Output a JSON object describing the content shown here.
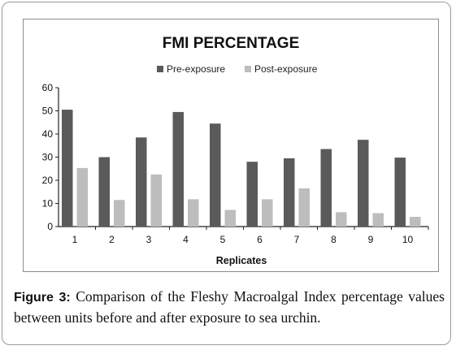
{
  "chart_data": {
    "type": "bar",
    "title": "FMI PERCENTAGE",
    "xlabel": "Replicates",
    "ylabel": "",
    "categories": [
      "1",
      "2",
      "3",
      "4",
      "5",
      "6",
      "7",
      "8",
      "9",
      "10"
    ],
    "series": [
      {
        "name": "Pre-exposure",
        "values": [
          50.5,
          30.0,
          38.5,
          49.5,
          44.5,
          28.0,
          29.5,
          33.5,
          37.5,
          29.8
        ],
        "color": "#5a5a5a"
      },
      {
        "name": "Post-exposure",
        "values": [
          25.3,
          11.5,
          22.5,
          11.8,
          7.2,
          11.8,
          16.5,
          6.2,
          5.8,
          4.2
        ],
        "color": "#bdbdbd"
      }
    ],
    "ylim": [
      0,
      60
    ],
    "yticks": [
      0,
      10,
      20,
      30,
      40,
      50,
      60
    ],
    "grid": false,
    "legend_position": "top-center"
  },
  "caption": {
    "label": "Figure 3:",
    "text": " Comparison of the Fleshy Macroalgal Index percentage values between units before and after exposure to sea urchin."
  }
}
